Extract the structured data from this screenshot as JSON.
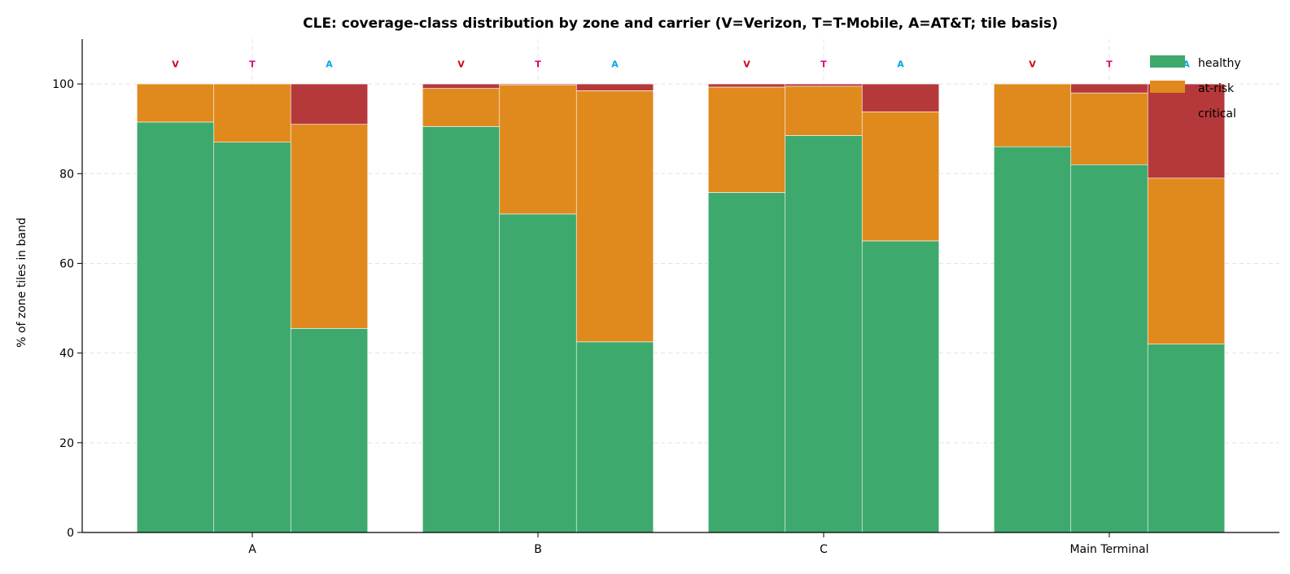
{
  "chart_data": {
    "type": "bar",
    "stacked": true,
    "grouped": true,
    "title": "CLE: coverage-class distribution by zone and carrier (V=Verizon, T=T-Mobile, A=AT&T; tile basis)",
    "xlabel": "",
    "ylabel": "% of zone tiles in band",
    "ylim": [
      0,
      110
    ],
    "yticks": [
      0,
      20,
      40,
      60,
      80,
      100
    ],
    "grid": true,
    "legend_position": "top-right",
    "categories": [
      "A",
      "B",
      "C",
      "Main Terminal"
    ],
    "carriers": [
      {
        "label": "V",
        "color": "#d0021b"
      },
      {
        "label": "T",
        "color": "#e20074"
      },
      {
        "label": "A",
        "color": "#00a8e0"
      }
    ],
    "series": [
      {
        "name": "healthy",
        "color": "#3ea96d",
        "values": [
          [
            91.5,
            87.0,
            45.5
          ],
          [
            90.5,
            71.0,
            42.5
          ],
          [
            75.8,
            88.5,
            65.0
          ],
          [
            86.0,
            82.0,
            42.0
          ]
        ]
      },
      {
        "name": "at-risk",
        "color": "#e08a1e",
        "values": [
          [
            8.5,
            13.0,
            45.5
          ],
          [
            8.5,
            28.8,
            56.0
          ],
          [
            23.5,
            11.0,
            28.8
          ],
          [
            14.0,
            16.0,
            37.0
          ]
        ]
      },
      {
        "name": "critical",
        "color": "#b5393b",
        "values": [
          [
            0.0,
            0.0,
            9.0
          ],
          [
            1.0,
            0.2,
            1.5
          ],
          [
            0.7,
            0.5,
            6.2
          ],
          [
            0.0,
            2.0,
            21.0
          ]
        ]
      }
    ]
  }
}
